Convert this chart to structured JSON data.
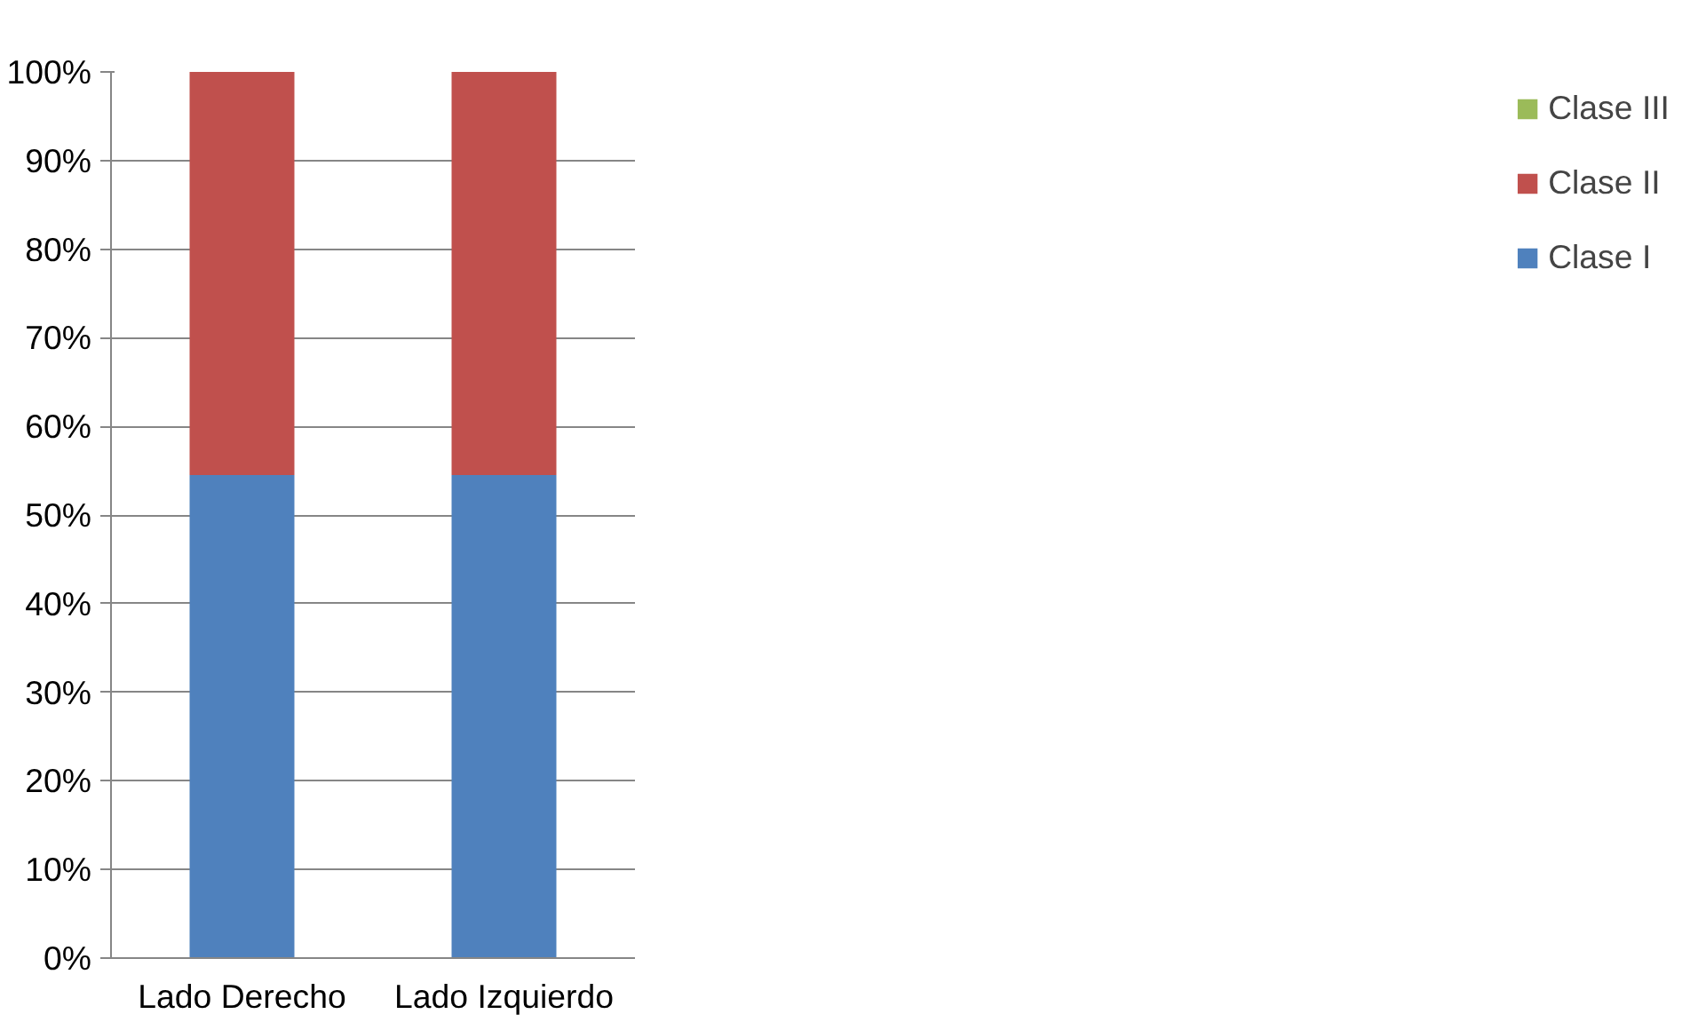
{
  "chart_data": {
    "type": "bar",
    "stacked": true,
    "categories": [
      "Lado Derecho",
      "Lado Izquierdo"
    ],
    "series": [
      {
        "name": "Clase I",
        "color": "#4f81bd",
        "values": [
          54.5,
          54.5
        ]
      },
      {
        "name": "Clase II",
        "color": "#c0504d",
        "values": [
          45.5,
          45.5
        ]
      },
      {
        "name": "Clase III",
        "color": "#9bbb59",
        "values": [
          0,
          0
        ]
      }
    ],
    "ylim": [
      0,
      100
    ],
    "yticks": [
      {
        "value": 0,
        "label": "0%"
      },
      {
        "value": 10,
        "label": "10%"
      },
      {
        "value": 20,
        "label": "20%"
      },
      {
        "value": 30,
        "label": "30%"
      },
      {
        "value": 40,
        "label": "40%"
      },
      {
        "value": 50,
        "label": "50%"
      },
      {
        "value": 60,
        "label": "60%"
      },
      {
        "value": 70,
        "label": "70%"
      },
      {
        "value": 80,
        "label": "80%"
      },
      {
        "value": 90,
        "label": "90%"
      },
      {
        "value": 100,
        "label": "100%"
      }
    ],
    "grid": "y",
    "legend": "right"
  }
}
